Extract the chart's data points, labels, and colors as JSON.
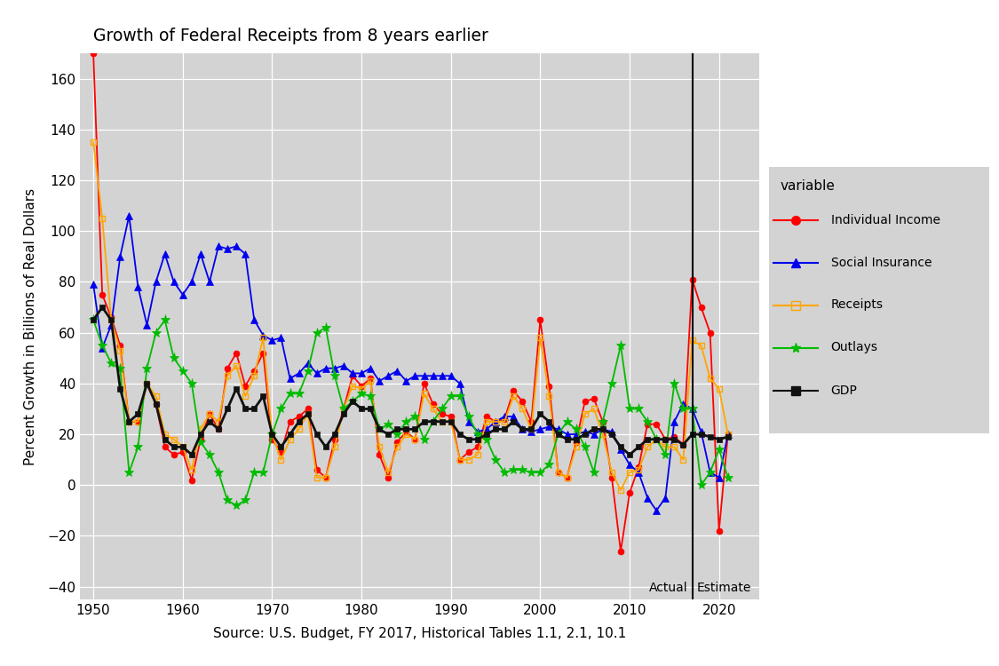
{
  "title": "Growth of Federal Receipts from 8 years earlier",
  "xlabel": "Source: U.S. Budget, FY 2017, Historical Tables 1.1, 2.1, 10.1",
  "ylabel": "Percent Growth in Billions of Real Dollars",
  "background_color": "#D3D3D3",
  "vline_x": 2017,
  "actual_label": "Actual",
  "estimate_label": "Estimate",
  "ylim": [
    -45,
    170
  ],
  "xlim": [
    1948.5,
    2024.5
  ],
  "years": [
    1950,
    1951,
    1952,
    1953,
    1954,
    1955,
    1956,
    1957,
    1958,
    1959,
    1960,
    1961,
    1962,
    1963,
    1964,
    1965,
    1966,
    1967,
    1968,
    1969,
    1970,
    1971,
    1972,
    1973,
    1974,
    1975,
    1976,
    1977,
    1978,
    1979,
    1980,
    1981,
    1982,
    1983,
    1984,
    1985,
    1986,
    1987,
    1988,
    1989,
    1990,
    1991,
    1992,
    1993,
    1994,
    1995,
    1996,
    1997,
    1998,
    1999,
    2000,
    2001,
    2002,
    2003,
    2004,
    2005,
    2006,
    2007,
    2008,
    2009,
    2010,
    2011,
    2012,
    2013,
    2014,
    2015,
    2016,
    2017,
    2018,
    2019,
    2020,
    2021
  ],
  "individual_income": [
    170,
    75,
    66,
    55,
    25,
    25,
    40,
    32,
    15,
    12,
    13,
    2,
    18,
    28,
    22,
    46,
    52,
    39,
    45,
    52,
    18,
    13,
    25,
    27,
    30,
    6,
    3,
    18,
    30,
    43,
    39,
    42,
    12,
    3,
    17,
    21,
    18,
    40,
    32,
    28,
    27,
    10,
    13,
    15,
    27,
    25,
    26,
    37,
    33,
    25,
    65,
    39,
    5,
    3,
    17,
    33,
    34,
    25,
    3,
    -26,
    -3,
    7,
    24,
    24,
    18,
    19,
    16,
    81,
    70,
    60,
    -18,
    20
  ],
  "social_insurance": [
    79,
    54,
    63,
    90,
    106,
    78,
    63,
    80,
    91,
    80,
    75,
    80,
    91,
    80,
    94,
    93,
    94,
    91,
    65,
    59,
    57,
    58,
    42,
    44,
    48,
    44,
    46,
    46,
    47,
    44,
    44,
    46,
    41,
    43,
    45,
    41,
    43,
    43,
    43,
    43,
    43,
    40,
    25,
    21,
    22,
    25,
    27,
    27,
    22,
    21,
    22,
    23,
    22,
    20,
    20,
    21,
    20,
    22,
    21,
    14,
    8,
    5,
    -5,
    -10,
    -5,
    25,
    32,
    30,
    21,
    5,
    3,
    20
  ],
  "receipts": [
    135,
    105,
    65,
    53,
    25,
    25,
    40,
    35,
    20,
    18,
    15,
    6,
    22,
    28,
    25,
    43,
    47,
    35,
    43,
    58,
    20,
    10,
    18,
    22,
    28,
    3,
    3,
    15,
    30,
    39,
    38,
    41,
    15,
    5,
    15,
    20,
    18,
    36,
    30,
    25,
    25,
    10,
    10,
    12,
    25,
    25,
    25,
    35,
    30,
    22,
    58,
    35,
    5,
    3,
    15,
    28,
    30,
    20,
    5,
    -2,
    5,
    6,
    15,
    18,
    15,
    15,
    10,
    57,
    55,
    42,
    38,
    20
  ],
  "outlays": [
    65,
    55,
    48,
    46,
    5,
    15,
    46,
    60,
    65,
    50,
    45,
    40,
    17,
    12,
    5,
    -6,
    -8,
    -6,
    5,
    5,
    20,
    30,
    36,
    36,
    45,
    60,
    62,
    43,
    30,
    33,
    36,
    35,
    22,
    24,
    20,
    25,
    27,
    18,
    25,
    30,
    35,
    35,
    27,
    20,
    18,
    10,
    5,
    6,
    6,
    5,
    5,
    8,
    20,
    25,
    22,
    15,
    5,
    25,
    40,
    55,
    30,
    30,
    25,
    18,
    12,
    40,
    30,
    30,
    0,
    5,
    14,
    3
  ],
  "gdp": [
    65,
    70,
    65,
    38,
    25,
    28,
    40,
    32,
    18,
    15,
    15,
    12,
    20,
    25,
    22,
    30,
    38,
    30,
    30,
    35,
    20,
    15,
    20,
    25,
    28,
    20,
    15,
    20,
    28,
    33,
    30,
    30,
    22,
    20,
    22,
    22,
    22,
    25,
    25,
    25,
    25,
    20,
    18,
    18,
    20,
    22,
    22,
    25,
    22,
    22,
    28,
    25,
    20,
    18,
    18,
    20,
    22,
    22,
    20,
    15,
    12,
    15,
    18,
    18,
    18,
    18,
    16,
    20,
    20,
    19,
    18,
    19
  ],
  "colors": {
    "Individual Income": "#FF0000",
    "Social Insurance": "#0000EE",
    "Receipts": "#FFA500",
    "Outlays": "#00BB00",
    "GDP": "#111111"
  },
  "xticks": [
    1950,
    1960,
    1970,
    1980,
    1990,
    2000,
    2010,
    2020
  ],
  "yticks": [
    -40,
    -20,
    0,
    20,
    40,
    60,
    80,
    100,
    120,
    140,
    160
  ]
}
